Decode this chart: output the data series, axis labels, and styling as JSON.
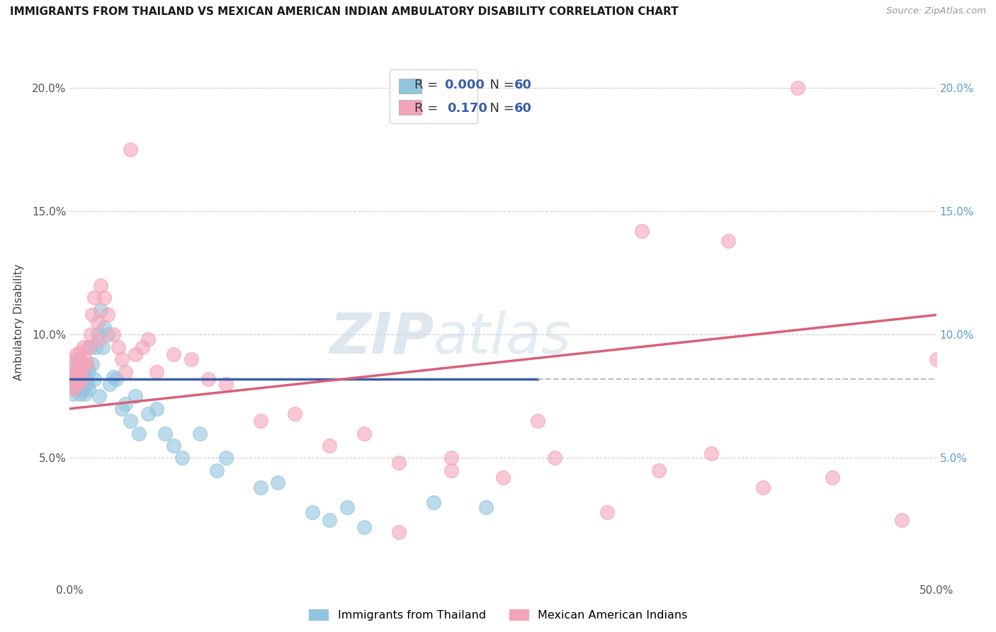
{
  "title": "IMMIGRANTS FROM THAILAND VS MEXICAN AMERICAN INDIAN AMBULATORY DISABILITY CORRELATION CHART",
  "source": "Source: ZipAtlas.com",
  "ylabel": "Ambulatory Disability",
  "xlim": [
    0.0,
    0.5
  ],
  "ylim": [
    0.0,
    0.21
  ],
  "xticks": [
    0.0,
    0.1,
    0.2,
    0.3,
    0.4,
    0.5
  ],
  "xticklabels": [
    "0.0%",
    "",
    "",
    "",
    "",
    "50.0%"
  ],
  "yticks": [
    0.0,
    0.05,
    0.1,
    0.15,
    0.2
  ],
  "yticklabels_left": [
    "",
    "5.0%",
    "10.0%",
    "15.0%",
    "20.0%"
  ],
  "yticklabels_right": [
    "",
    "5.0%",
    "10.0%",
    "15.0%",
    "20.0%"
  ],
  "blue_color": "#92c5de",
  "pink_color": "#f4a4b8",
  "blue_line_color": "#3a5eac",
  "pink_line_color": "#d9607a",
  "blue_scatter_x": [
    0.001,
    0.001,
    0.002,
    0.002,
    0.003,
    0.003,
    0.003,
    0.004,
    0.004,
    0.005,
    0.005,
    0.005,
    0.006,
    0.006,
    0.006,
    0.007,
    0.007,
    0.007,
    0.008,
    0.008,
    0.009,
    0.009,
    0.01,
    0.01,
    0.011,
    0.011,
    0.012,
    0.013,
    0.014,
    0.015,
    0.016,
    0.017,
    0.018,
    0.019,
    0.02,
    0.022,
    0.023,
    0.025,
    0.027,
    0.03,
    0.032,
    0.035,
    0.038,
    0.04,
    0.045,
    0.05,
    0.055,
    0.06,
    0.065,
    0.075,
    0.085,
    0.09,
    0.11,
    0.12,
    0.14,
    0.15,
    0.16,
    0.17,
    0.21,
    0.24
  ],
  "blue_scatter_y": [
    0.082,
    0.079,
    0.076,
    0.083,
    0.081,
    0.088,
    0.078,
    0.082,
    0.086,
    0.079,
    0.083,
    0.09,
    0.076,
    0.08,
    0.085,
    0.078,
    0.083,
    0.088,
    0.08,
    0.085,
    0.076,
    0.082,
    0.08,
    0.087,
    0.078,
    0.085,
    0.095,
    0.088,
    0.082,
    0.095,
    0.1,
    0.075,
    0.11,
    0.095,
    0.103,
    0.1,
    0.08,
    0.083,
    0.082,
    0.07,
    0.072,
    0.065,
    0.075,
    0.06,
    0.068,
    0.07,
    0.06,
    0.055,
    0.05,
    0.06,
    0.045,
    0.05,
    0.038,
    0.04,
    0.028,
    0.025,
    0.03,
    0.022,
    0.032,
    0.03
  ],
  "pink_scatter_x": [
    0.001,
    0.001,
    0.002,
    0.002,
    0.003,
    0.003,
    0.004,
    0.004,
    0.005,
    0.005,
    0.006,
    0.006,
    0.007,
    0.007,
    0.008,
    0.009,
    0.01,
    0.011,
    0.012,
    0.013,
    0.014,
    0.016,
    0.017,
    0.018,
    0.02,
    0.022,
    0.025,
    0.028,
    0.03,
    0.032,
    0.035,
    0.038,
    0.042,
    0.045,
    0.05,
    0.06,
    0.07,
    0.08,
    0.09,
    0.11,
    0.13,
    0.15,
    0.17,
    0.19,
    0.22,
    0.25,
    0.28,
    0.31,
    0.34,
    0.37,
    0.4,
    0.44,
    0.48,
    0.5,
    0.42,
    0.38,
    0.33,
    0.27,
    0.22,
    0.19
  ],
  "pink_scatter_y": [
    0.082,
    0.079,
    0.085,
    0.078,
    0.082,
    0.09,
    0.085,
    0.092,
    0.08,
    0.087,
    0.085,
    0.093,
    0.082,
    0.088,
    0.095,
    0.09,
    0.088,
    0.095,
    0.1,
    0.108,
    0.115,
    0.105,
    0.098,
    0.12,
    0.115,
    0.108,
    0.1,
    0.095,
    0.09,
    0.085,
    0.175,
    0.092,
    0.095,
    0.098,
    0.085,
    0.092,
    0.09,
    0.082,
    0.08,
    0.065,
    0.068,
    0.055,
    0.06,
    0.048,
    0.045,
    0.042,
    0.05,
    0.028,
    0.045,
    0.052,
    0.038,
    0.042,
    0.025,
    0.09,
    0.2,
    0.138,
    0.142,
    0.065,
    0.05,
    0.02
  ],
  "blue_line_x": [
    0.0,
    0.27
  ],
  "blue_line_y": [
    0.082,
    0.082
  ],
  "pink_line_x": [
    0.0,
    0.5
  ],
  "pink_line_y": [
    0.07,
    0.108
  ],
  "dashed_line_x": [
    0.27,
    0.5
  ],
  "dashed_line_y": [
    0.082,
    0.082
  ],
  "watermark_text": "ZIPatlas",
  "legend_r1": "0.000",
  "legend_n1": "60",
  "legend_r2": "0.170",
  "legend_n2": "60"
}
